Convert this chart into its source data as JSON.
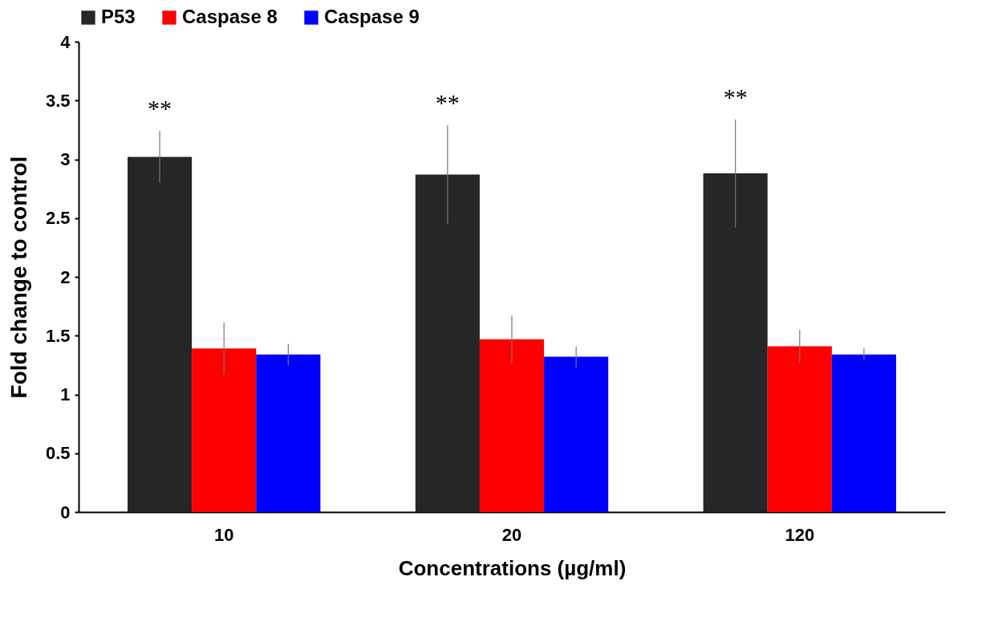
{
  "chart_data": {
    "type": "bar",
    "xlabel": "Concentrations (µg/ml)",
    "ylabel": "Fold change to control",
    "categories": [
      "10",
      "20",
      "120"
    ],
    "series": [
      {
        "name": "P53",
        "color": "#262626",
        "values": [
          3.02,
          2.87,
          2.88
        ],
        "errors": [
          0.22,
          0.42,
          0.46
        ]
      },
      {
        "name": "Caspase 8",
        "color": "#ff0000",
        "values": [
          1.39,
          1.47,
          1.41
        ],
        "errors": [
          0.22,
          0.2,
          0.14
        ]
      },
      {
        "name": "Caspase 9",
        "color": "#0000ff",
        "values": [
          1.34,
          1.32,
          1.34
        ],
        "errors": [
          0.09,
          0.09,
          0.05
        ]
      }
    ],
    "ylim": [
      0,
      4
    ],
    "yticks": [
      0,
      0.5,
      1,
      1.5,
      2,
      2.5,
      3,
      3.5,
      4
    ],
    "grid": false,
    "legend": "top",
    "annotations": [
      "**",
      "**",
      "**"
    ]
  }
}
